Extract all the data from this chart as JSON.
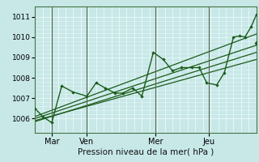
{
  "bg_color": "#c8e8e8",
  "grid_color": "#aacccc",
  "line_color": "#1a5c1a",
  "title": "Pression niveau de la mer( hPa )",
  "ylabel_ticks": [
    1006,
    1007,
    1008,
    1009,
    1010,
    1011
  ],
  "ylim": [
    1005.3,
    1011.5
  ],
  "xlim": [
    0,
    290
  ],
  "xtick_positions": [
    22,
    68,
    158,
    228
  ],
  "xtick_labels": [
    "Mar",
    "Ven",
    "Mer",
    "Jeu"
  ],
  "vline_positions": [
    22,
    68,
    158,
    228
  ],
  "main_line_x": [
    0,
    10,
    22,
    35,
    50,
    68,
    80,
    92,
    105,
    115,
    128,
    140,
    155,
    168,
    180,
    192,
    205,
    215,
    225,
    238,
    248,
    260,
    268,
    275,
    283,
    290
  ],
  "main_line_y": [
    1006.5,
    1006.1,
    1005.8,
    1007.6,
    1007.3,
    1007.1,
    1007.75,
    1007.5,
    1007.25,
    1007.25,
    1007.5,
    1007.1,
    1009.25,
    1008.9,
    1008.35,
    1008.5,
    1008.5,
    1008.5,
    1007.75,
    1007.65,
    1008.25,
    1010.0,
    1010.05,
    1010.0,
    1010.5,
    1011.1
  ],
  "trend1_x": [
    0,
    290
  ],
  "trend1_y": [
    1005.9,
    1008.9
  ],
  "trend2_x": [
    0,
    290
  ],
  "trend2_y": [
    1005.85,
    1009.25
  ],
  "trend3_x": [
    0,
    290
  ],
  "trend3_y": [
    1006.0,
    1009.6
  ],
  "trend4_x": [
    0,
    290
  ],
  "trend4_y": [
    1006.1,
    1010.15
  ],
  "extra_point_x": [
    290
  ],
  "extra_point_y": [
    1009.7
  ]
}
